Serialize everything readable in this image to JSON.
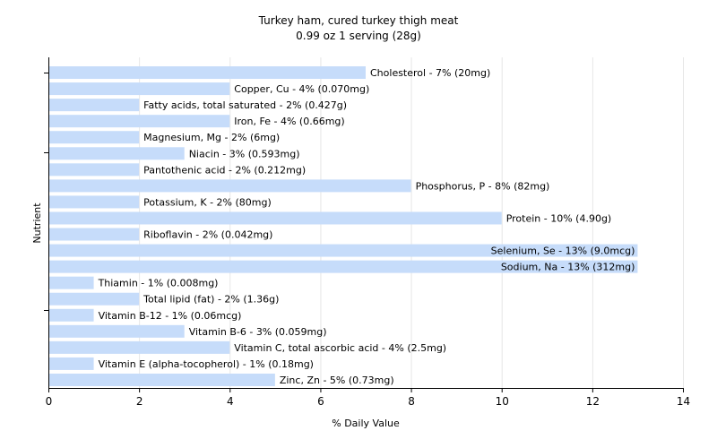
{
  "chart_data": {
    "type": "bar",
    "orientation": "horizontal",
    "title": "Turkey ham, cured turkey thigh meat",
    "subtitle": "0.99 oz 1 serving (28g)",
    "xlabel": "% Daily Value",
    "ylabel": "Nutrient",
    "xlim": [
      0,
      14
    ],
    "xticks": [
      0,
      2,
      4,
      6,
      8,
      10,
      12,
      14
    ],
    "grid": true,
    "bar_color": "#c6dcfa",
    "categories": [
      "Cholesterol",
      "Copper, Cu",
      "Fatty acids, total saturated",
      "Iron, Fe",
      "Magnesium, Mg",
      "Niacin",
      "Pantothenic acid",
      "Phosphorus, P",
      "Potassium, K",
      "Protein",
      "Riboflavin",
      "Selenium, Se",
      "Sodium, Na",
      "Thiamin",
      "Total lipid (fat)",
      "Vitamin B-12",
      "Vitamin B-6",
      "Vitamin C, total ascorbic acid",
      "Vitamin E (alpha-tocopherol)",
      "Zinc, Zn"
    ],
    "values": [
      7,
      4,
      2,
      4,
      2,
      3,
      2,
      8,
      2,
      10,
      2,
      13,
      13,
      1,
      2,
      1,
      3,
      4,
      1,
      5
    ],
    "labels": [
      "Cholesterol - 7% (20mg)",
      "Copper, Cu - 4% (0.070mg)",
      "Fatty acids, total saturated - 2% (0.427g)",
      "Iron, Fe - 4% (0.66mg)",
      "Magnesium, Mg - 2% (6mg)",
      "Niacin - 3% (0.593mg)",
      "Pantothenic acid - 2% (0.212mg)",
      "Phosphorus, P - 8% (82mg)",
      "Potassium, K - 2% (80mg)",
      "Protein - 10% (4.90g)",
      "Riboflavin - 2% (0.042mg)",
      "Selenium, Se - 13% (9.0mcg)",
      "Sodium, Na - 13% (312mg)",
      "Thiamin - 1% (0.008mg)",
      "Total lipid (fat) - 2% (1.36g)",
      "Vitamin B-12 - 1% (0.06mcg)",
      "Vitamin B-6 - 3% (0.059mg)",
      "Vitamin C, total ascorbic acid - 4% (2.5mg)",
      "Vitamin E (alpha-tocopherol) - 1% (0.18mg)",
      "Zinc, Zn - 5% (0.73mg)"
    ]
  }
}
